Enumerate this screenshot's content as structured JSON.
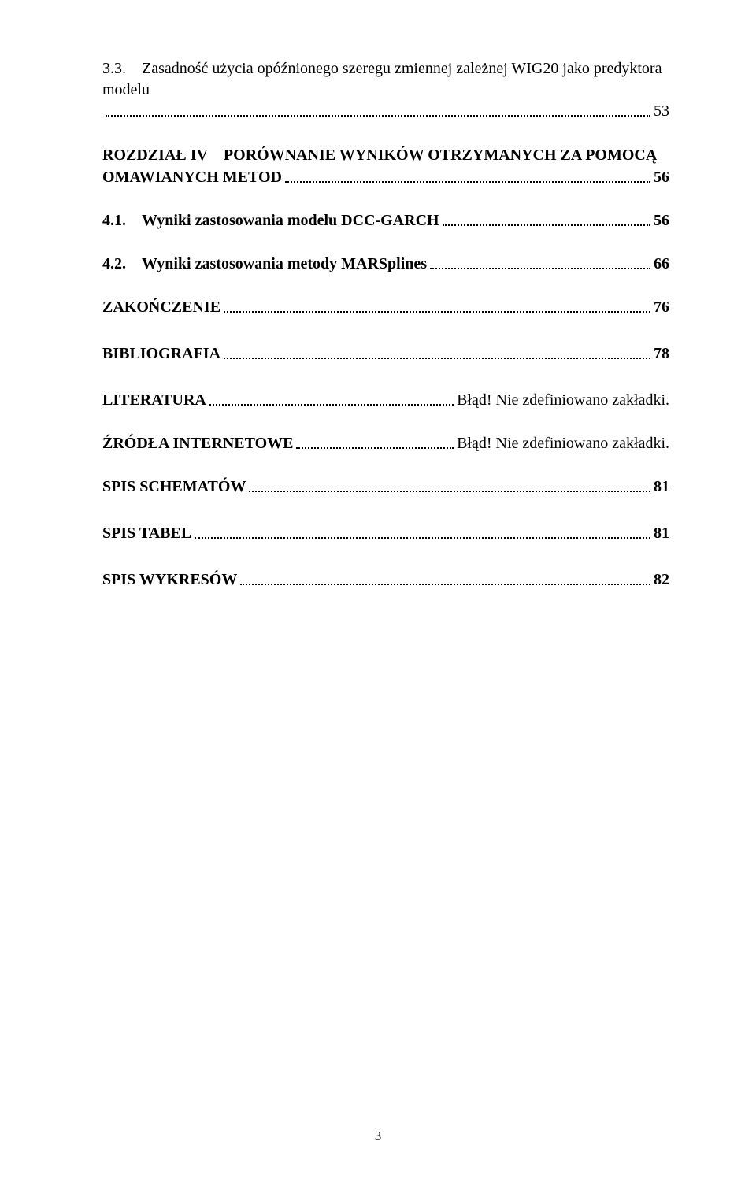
{
  "entries": {
    "sec33": {
      "label": "3.3. Zasadność użycia opóźnionego szeregu zmiennej zależnej WIG20 jako predyktora modelu",
      "page": "53"
    },
    "ch4": {
      "line1": "ROZDZIAŁ IV PORÓWNANIE WYNIKÓW OTRZYMANYCH ZA POMOCĄ",
      "line2": "OMAWIANYCH METOD",
      "page": "56"
    },
    "sec41": {
      "label": "4.1. Wyniki zastosowania modelu DCC-GARCH",
      "page": "56"
    },
    "sec42": {
      "label": "4.2. Wyniki zastosowania metody MARSplines",
      "page": "66"
    },
    "zak": {
      "label": "ZAKOŃCZENIE",
      "page": "76"
    },
    "bib": {
      "label": "BIBLIOGRAFIA",
      "page": "78"
    },
    "lit": {
      "label": "LITERATURA",
      "page": "Błąd! Nie zdefiniowano zakładki."
    },
    "zro": {
      "label": "ŹRÓDŁA INTERNETOWE",
      "page": "Błąd! Nie zdefiniowano zakładki."
    },
    "sch": {
      "label": "SPIS SCHEMATÓW",
      "page": "81"
    },
    "tab": {
      "label": "SPIS TABEL",
      "page": "81"
    },
    "wyk": {
      "label": "SPIS WYKRESÓW",
      "page": "82"
    }
  },
  "page_number": "3",
  "colors": {
    "text": "#000000",
    "bg": "#ffffff"
  },
  "font": {
    "family": "Times New Roman",
    "base_size_pt": 15
  }
}
